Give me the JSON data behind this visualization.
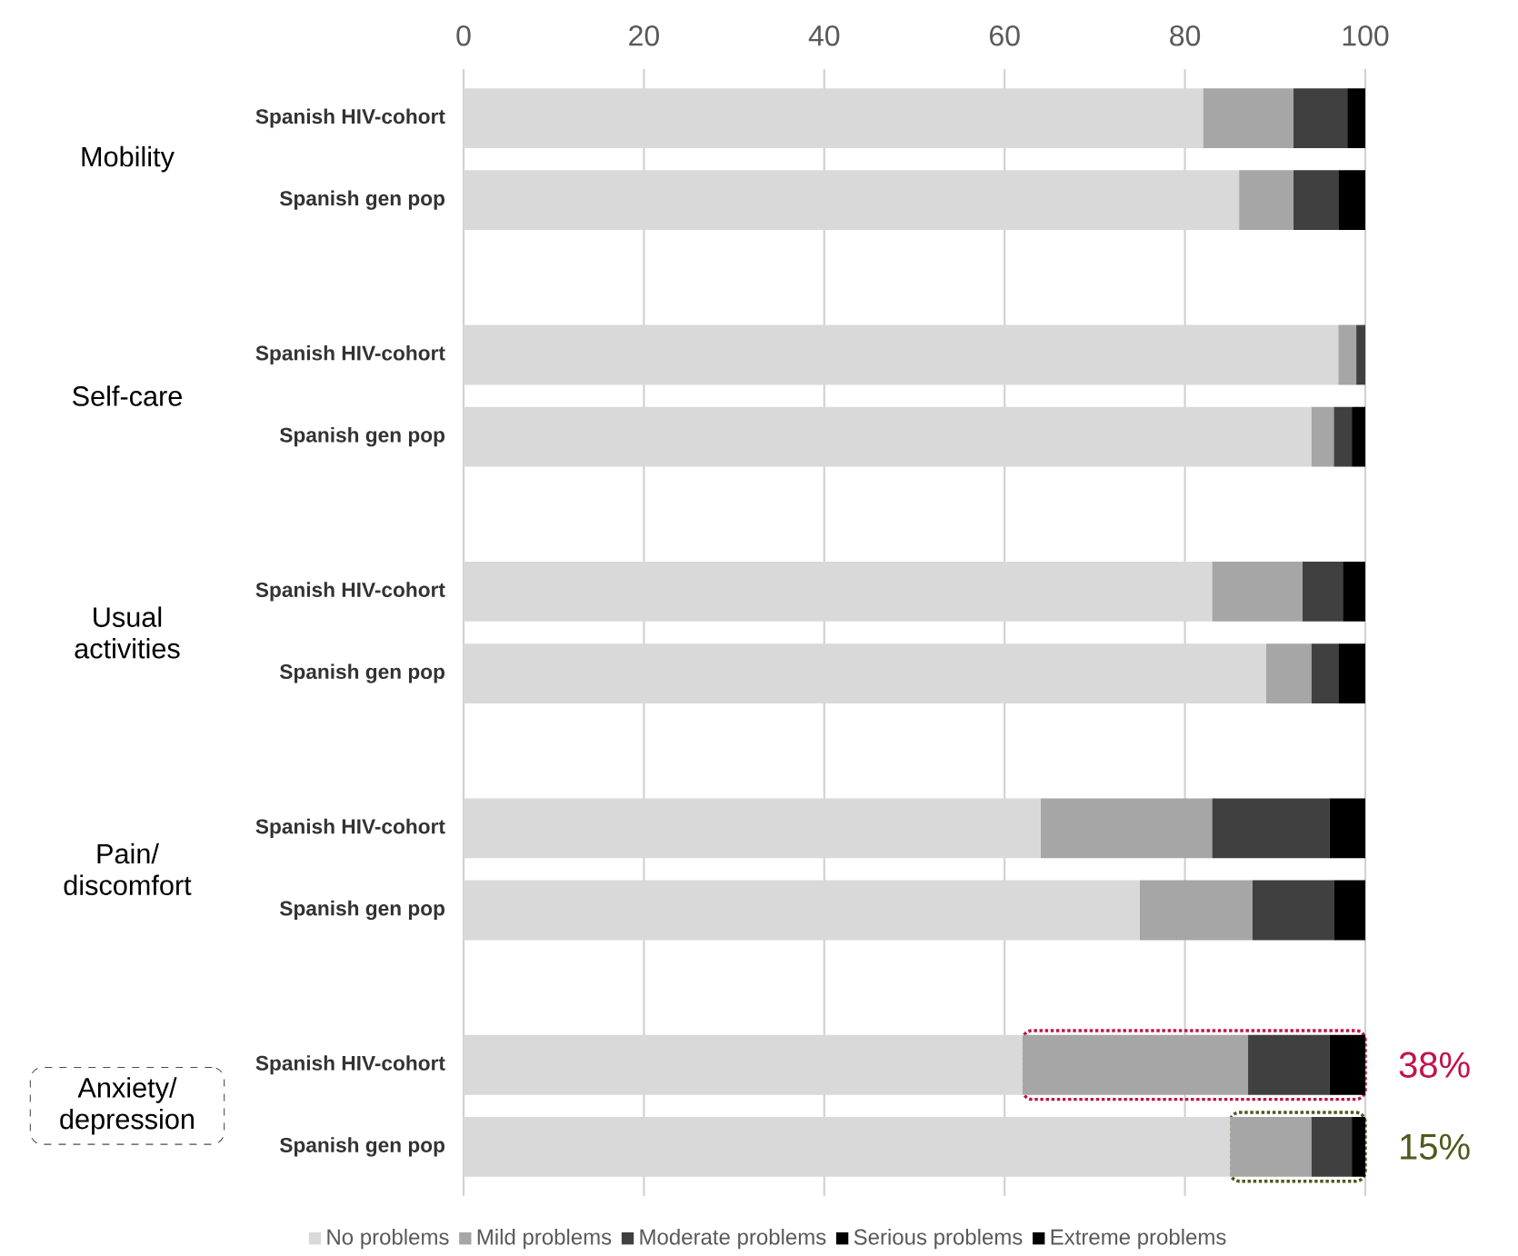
{
  "chart_data": {
    "type": "bar",
    "orientation": "horizontal",
    "stacked": true,
    "categories": [
      "Spanish HIV-cohort",
      "Spanish gen pop",
      "Spanish HIV-cohort",
      "Spanish gen pop",
      "Spanish HIV-cohort",
      "Spanish gen pop",
      "Spanish HIV-cohort",
      "Spanish gen pop",
      "Spanish HIV-cohort",
      "Spanish gen pop"
    ],
    "series": [
      {
        "name": "No problems",
        "color": "#d9d9d9",
        "values": [
          82,
          86,
          97,
          94,
          83,
          89,
          64,
          75,
          62,
          85
        ]
      },
      {
        "name": "Mild problems",
        "color": "#a6a6a6",
        "values": [
          10,
          6,
          2,
          2.5,
          10,
          5,
          19,
          12.5,
          25,
          9
        ]
      },
      {
        "name": "Moderate problems",
        "color": "#404040",
        "values": [
          6,
          5,
          1,
          2,
          4.5,
          3,
          13,
          9,
          9,
          4.5
        ]
      },
      {
        "name": "Serious problems",
        "color": "#000000",
        "values": [
          2,
          3,
          0,
          1.5,
          2.5,
          3,
          4,
          3.5,
          4,
          1.5
        ]
      },
      {
        "name": "Extreme problems",
        "color": "#000000",
        "values": [
          null,
          null,
          null,
          null,
          null,
          null,
          null,
          null,
          null,
          null
        ]
      }
    ],
    "xlim": [
      0,
      100
    ],
    "xticks": [
      0,
      20,
      40,
      60,
      80,
      100
    ],
    "grid": "x",
    "legend": "bottom",
    "annotations": [
      "Mobility",
      "Self-care",
      "Usual activities",
      "Pain/ discomfort",
      "Anxiety/ depression",
      "38%",
      "15%"
    ]
  }
}
